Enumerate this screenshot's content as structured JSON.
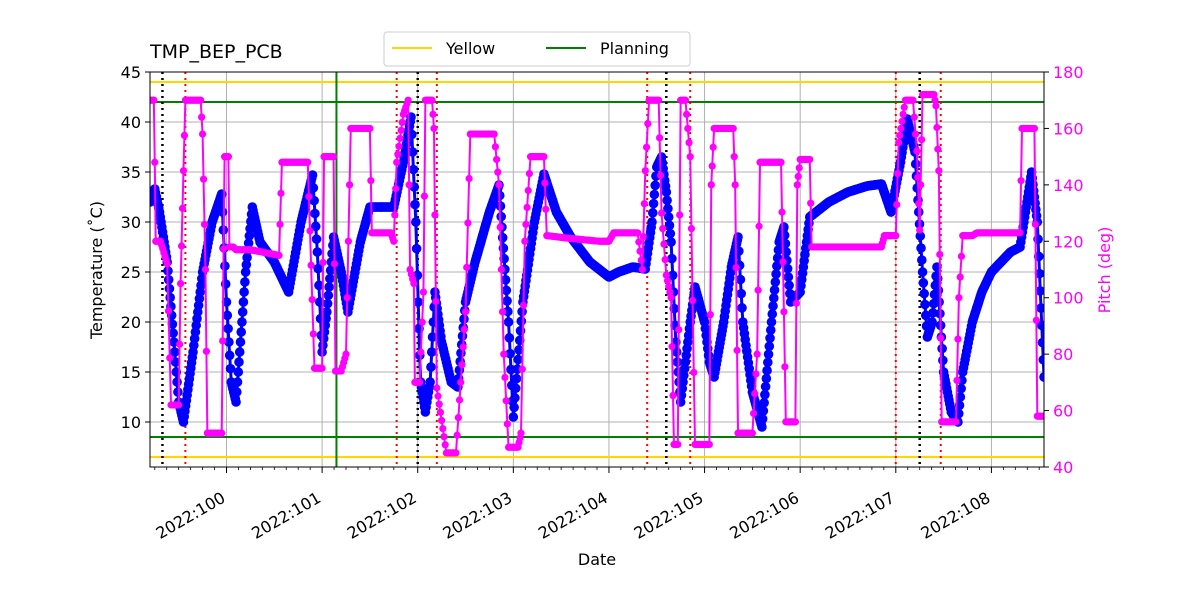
{
  "chart_data": {
    "type": "line",
    "title": "TMP_BEP_PCB",
    "xlabel": "Date",
    "ylabel": "Temperature ($^\\circ$C)",
    "ylabel_display": "Temperature (˚C)",
    "y2label": "Pitch (deg)",
    "xlim": [
      99.2,
      108.55
    ],
    "ylim": [
      5.5,
      45
    ],
    "y2lim": [
      40,
      180
    ],
    "xticks": [
      100,
      101,
      102,
      103,
      104,
      105,
      106,
      107,
      108
    ],
    "xtick_labels": [
      "2022:100",
      "2022:101",
      "2022:102",
      "2022:103",
      "2022:104",
      "2022:105",
      "2022:106",
      "2022:107",
      "2022:108"
    ],
    "yticks": [
      10,
      15,
      20,
      25,
      30,
      35,
      40,
      45
    ],
    "y2ticks": [
      40,
      60,
      80,
      100,
      120,
      140,
      160,
      180
    ],
    "grid": true,
    "legend": {
      "placement": "top-center",
      "entries": [
        {
          "label": "Yellow",
          "color": "#ffd700"
        },
        {
          "label": "Planning",
          "color": "#008000"
        }
      ]
    },
    "hlines": [
      {
        "name": "Yellow",
        "values": [
          6.5,
          44.0
        ],
        "color": "#ffd700"
      },
      {
        "name": "Planning",
        "values": [
          8.5,
          42.0
        ],
        "color": "#008000"
      }
    ],
    "vline_now": {
      "x": 101.15,
      "color": "#008000"
    },
    "vlines_black_dotted": [
      99.33,
      102.0,
      104.6,
      107.25
    ],
    "vlines_red_dotted": [
      99.57,
      101.78,
      102.2,
      104.4,
      104.85,
      107.0,
      107.47
    ],
    "series": [
      {
        "name": "",
        "axis": "left",
        "color": "#0000ff",
        "points": [
          [
            99.2,
            32
          ],
          [
            99.25,
            33.3
          ],
          [
            99.3,
            31
          ],
          [
            99.38,
            26
          ],
          [
            99.45,
            18
          ],
          [
            99.5,
            12
          ],
          [
            99.55,
            10
          ],
          [
            99.65,
            17
          ],
          [
            99.75,
            25
          ],
          [
            99.85,
            30
          ],
          [
            99.95,
            32.8
          ],
          [
            100.0,
            22
          ],
          [
            100.05,
            14
          ],
          [
            100.1,
            12
          ],
          [
            100.2,
            25
          ],
          [
            100.27,
            31.5
          ],
          [
            100.35,
            28
          ],
          [
            100.5,
            26
          ],
          [
            100.65,
            23
          ],
          [
            100.78,
            30
          ],
          [
            100.9,
            34.7
          ],
          [
            100.95,
            27
          ],
          [
            101.0,
            17
          ],
          [
            101.05,
            21
          ],
          [
            101.12,
            28.5
          ],
          [
            101.2,
            25
          ],
          [
            101.27,
            21
          ],
          [
            101.4,
            28
          ],
          [
            101.5,
            31.5
          ],
          [
            101.75,
            31.5
          ],
          [
            101.85,
            36
          ],
          [
            101.93,
            40.5
          ],
          [
            101.98,
            30
          ],
          [
            102.03,
            14
          ],
          [
            102.08,
            11
          ],
          [
            102.13,
            14
          ],
          [
            102.18,
            23
          ],
          [
            102.25,
            18
          ],
          [
            102.35,
            14
          ],
          [
            102.42,
            13.5
          ],
          [
            102.5,
            22
          ],
          [
            102.6,
            26
          ],
          [
            102.75,
            31
          ],
          [
            102.85,
            33.7
          ],
          [
            102.95,
            20
          ],
          [
            103.0,
            10.5
          ],
          [
            103.1,
            22
          ],
          [
            103.22,
            30
          ],
          [
            103.32,
            34.8
          ],
          [
            103.45,
            31
          ],
          [
            103.6,
            28.5
          ],
          [
            103.8,
            26
          ],
          [
            104.0,
            24.5
          ],
          [
            104.1,
            25
          ],
          [
            104.25,
            25.5
          ],
          [
            104.38,
            25.3
          ],
          [
            104.45,
            30
          ],
          [
            104.5,
            35.5
          ],
          [
            104.55,
            36.5
          ],
          [
            104.6,
            33
          ],
          [
            104.65,
            28
          ],
          [
            104.7,
            18
          ],
          [
            104.75,
            12
          ],
          [
            104.85,
            20
          ],
          [
            104.9,
            23.5
          ],
          [
            105.0,
            20
          ],
          [
            105.05,
            16
          ],
          [
            105.1,
            14.5
          ],
          [
            105.2,
            20
          ],
          [
            105.28,
            25.5
          ],
          [
            105.35,
            28.5
          ],
          [
            105.4,
            20
          ],
          [
            105.5,
            13
          ],
          [
            105.6,
            9.5
          ],
          [
            105.7,
            20
          ],
          [
            105.78,
            28
          ],
          [
            105.83,
            29.5
          ],
          [
            105.9,
            22
          ],
          [
            106.0,
            23
          ],
          [
            106.1,
            30.5
          ],
          [
            106.3,
            32
          ],
          [
            106.5,
            33
          ],
          [
            106.7,
            33.6
          ],
          [
            106.85,
            33.8
          ],
          [
            106.95,
            31
          ],
          [
            107.05,
            36
          ],
          [
            107.12,
            40.3
          ],
          [
            107.2,
            37
          ],
          [
            107.28,
            25
          ],
          [
            107.33,
            18.5
          ],
          [
            107.38,
            20
          ],
          [
            107.43,
            25.5
          ],
          [
            107.5,
            15
          ],
          [
            107.58,
            11
          ],
          [
            107.65,
            10
          ],
          [
            107.7,
            15
          ],
          [
            107.8,
            20
          ],
          [
            107.9,
            23
          ],
          [
            108.0,
            25
          ],
          [
            108.2,
            27
          ],
          [
            108.3,
            27.5
          ],
          [
            108.42,
            35
          ],
          [
            108.48,
            30
          ],
          [
            108.55,
            14.5
          ]
        ]
      },
      {
        "name": "",
        "axis": "right",
        "color": "#ff00ff",
        "points": [
          [
            99.2,
            170
          ],
          [
            99.24,
            170
          ],
          [
            99.25,
            148
          ],
          [
            99.26,
            120
          ],
          [
            99.31,
            120
          ],
          [
            99.38,
            112
          ],
          [
            99.42,
            62
          ],
          [
            99.5,
            62
          ],
          [
            99.52,
            105
          ],
          [
            99.55,
            145
          ],
          [
            99.57,
            170
          ],
          [
            99.73,
            170
          ],
          [
            99.75,
            158
          ],
          [
            99.78,
            110
          ],
          [
            99.8,
            52
          ],
          [
            99.95,
            52
          ],
          [
            99.98,
            150
          ],
          [
            100.02,
            150
          ],
          [
            100.03,
            118
          ],
          [
            100.07,
            118
          ],
          [
            100.1,
            117
          ],
          [
            100.25,
            117
          ],
          [
            100.4,
            116
          ],
          [
            100.55,
            115
          ],
          [
            100.58,
            148
          ],
          [
            100.85,
            148
          ],
          [
            100.92,
            75
          ],
          [
            101.0,
            75
          ],
          [
            101.02,
            150
          ],
          [
            101.12,
            150
          ],
          [
            101.14,
            74
          ],
          [
            101.2,
            74
          ],
          [
            101.25,
            80
          ],
          [
            101.3,
            160
          ],
          [
            101.5,
            160
          ],
          [
            101.52,
            123
          ],
          [
            101.72,
            123
          ],
          [
            101.75,
            120
          ],
          [
            101.78,
            148
          ],
          [
            101.85,
            165
          ],
          [
            101.9,
            170
          ],
          [
            101.92,
            110
          ],
          [
            101.96,
            105
          ],
          [
            101.97,
            70
          ],
          [
            102.02,
            70
          ],
          [
            102.06,
            102
          ],
          [
            102.08,
            170
          ],
          [
            102.15,
            170
          ],
          [
            102.17,
            160
          ],
          [
            102.2,
            68
          ],
          [
            102.3,
            45
          ],
          [
            102.4,
            45
          ],
          [
            102.45,
            70
          ],
          [
            102.5,
            95
          ],
          [
            102.55,
            158
          ],
          [
            102.8,
            158
          ],
          [
            102.85,
            140
          ],
          [
            102.9,
            80
          ],
          [
            102.95,
            47
          ],
          [
            103.05,
            47
          ],
          [
            103.08,
            52
          ],
          [
            103.12,
            120
          ],
          [
            103.18,
            150
          ],
          [
            103.32,
            150
          ],
          [
            103.35,
            122
          ],
          [
            103.6,
            121
          ],
          [
            103.9,
            120
          ],
          [
            104.0,
            120
          ],
          [
            104.05,
            123
          ],
          [
            104.3,
            123
          ],
          [
            104.35,
            110
          ],
          [
            104.38,
            145
          ],
          [
            104.42,
            170
          ],
          [
            104.52,
            170
          ],
          [
            104.55,
            130
          ],
          [
            104.6,
            108
          ],
          [
            104.65,
            100
          ],
          [
            104.68,
            48
          ],
          [
            104.72,
            48
          ],
          [
            104.75,
            170
          ],
          [
            104.8,
            170
          ],
          [
            104.85,
            150
          ],
          [
            104.9,
            48
          ],
          [
            105.05,
            48
          ],
          [
            105.07,
            140
          ],
          [
            105.1,
            160
          ],
          [
            105.3,
            160
          ],
          [
            105.32,
            140
          ],
          [
            105.35,
            52
          ],
          [
            105.5,
            52
          ],
          [
            105.55,
            80
          ],
          [
            105.58,
            148
          ],
          [
            105.8,
            148
          ],
          [
            105.83,
            95
          ],
          [
            105.85,
            56
          ],
          [
            105.95,
            56
          ],
          [
            105.97,
            140
          ],
          [
            106.0,
            149
          ],
          [
            106.1,
            149
          ],
          [
            106.12,
            118
          ],
          [
            106.3,
            118
          ],
          [
            106.6,
            118
          ],
          [
            106.85,
            118
          ],
          [
            106.88,
            122
          ],
          [
            107.0,
            122
          ],
          [
            107.03,
            155
          ],
          [
            107.1,
            170
          ],
          [
            107.18,
            170
          ],
          [
            107.22,
            152
          ],
          [
            107.25,
            124
          ],
          [
            107.28,
            172
          ],
          [
            107.4,
            172
          ],
          [
            107.42,
            168
          ],
          [
            107.45,
            145
          ],
          [
            107.48,
            56
          ],
          [
            107.63,
            56
          ],
          [
            107.66,
            100
          ],
          [
            107.7,
            122
          ],
          [
            107.8,
            122
          ],
          [
            107.85,
            123
          ],
          [
            108.0,
            123
          ],
          [
            108.3,
            123
          ],
          [
            108.32,
            160
          ],
          [
            108.45,
            160
          ],
          [
            108.48,
            58
          ],
          [
            108.55,
            58
          ]
        ]
      }
    ]
  }
}
